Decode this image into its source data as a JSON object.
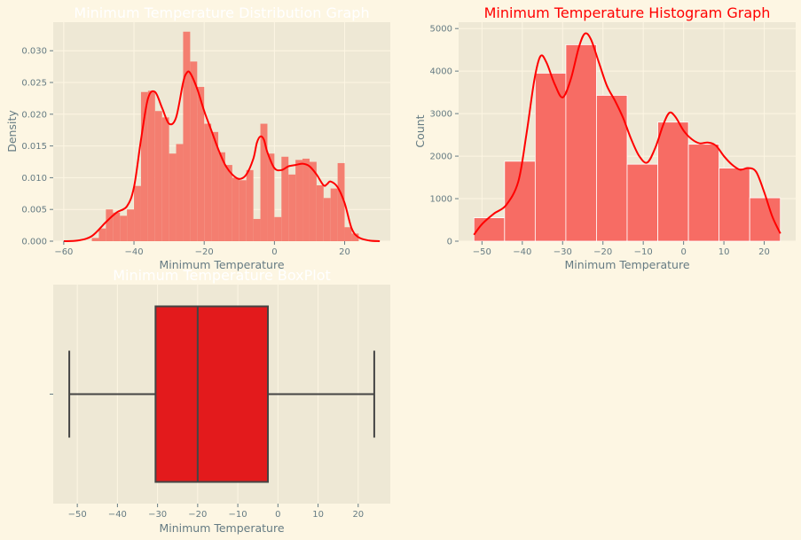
{
  "chart_data": [
    {
      "type": "bar",
      "subtype": "density-histogram-with-kde",
      "title": "Minimum Temperature Distribution Graph",
      "title_color": "#ffffff",
      "xlabel": "Minimum Temperature",
      "ylabel": "Density",
      "xlim": [
        -63,
        33
      ],
      "ylim": [
        0,
        0.0345
      ],
      "xticks": [
        -60,
        -40,
        -20,
        0,
        20
      ],
      "yticks": [
        0.0,
        0.005,
        0.01,
        0.015,
        0.02,
        0.025,
        0.03
      ],
      "ytick_labels": [
        "0.000",
        "0.005",
        "0.010",
        "0.015",
        "0.020",
        "0.025",
        "0.030"
      ],
      "grid": true,
      "bar_color": "#f47e70",
      "line_color": "#ff0000",
      "bin_edges": [
        -52,
        -50,
        -48,
        -46,
        -44,
        -42,
        -40,
        -38,
        -36,
        -34,
        -32,
        -30,
        -28,
        -26,
        -24,
        -22,
        -20,
        -18,
        -16,
        -14,
        -12,
        -10,
        -8,
        -6,
        -4,
        -2,
        0,
        2,
        4,
        6,
        8,
        10,
        12,
        14,
        16,
        18,
        20,
        22,
        24
      ],
      "values": [
        0.0005,
        0.002,
        0.005,
        0.0045,
        0.004,
        0.005,
        0.0087,
        0.0235,
        0.0237,
        0.0205,
        0.0195,
        0.0138,
        0.0153,
        0.033,
        0.0283,
        0.0243,
        0.0185,
        0.0172,
        0.014,
        0.012,
        0.01,
        0.0096,
        0.0112,
        0.0035,
        0.0185,
        0.0138,
        0.0038,
        0.0133,
        0.0105,
        0.0128,
        0.013,
        0.0125,
        0.0088,
        0.0068,
        0.0083,
        0.0123,
        0.0022,
        0.0012
      ],
      "kde": {
        "x": [
          -60,
          -56,
          -52,
          -48,
          -45,
          -42,
          -40,
          -38,
          -36,
          -34,
          -32,
          -30,
          -28,
          -26,
          -25,
          -24,
          -22,
          -20,
          -18,
          -16,
          -14,
          -12,
          -10,
          -8,
          -6,
          -5,
          -4,
          -3,
          -2,
          0,
          2,
          4,
          6,
          8,
          10,
          12,
          14,
          15,
          16,
          18,
          20,
          22,
          24,
          27,
          30
        ],
        "y": [
          0.0,
          0.0001,
          0.0008,
          0.003,
          0.0045,
          0.0055,
          0.0085,
          0.016,
          0.0225,
          0.0235,
          0.021,
          0.0185,
          0.0195,
          0.025,
          0.0265,
          0.0265,
          0.024,
          0.0205,
          0.0175,
          0.0145,
          0.012,
          0.0105,
          0.0098,
          0.0105,
          0.013,
          0.0155,
          0.0165,
          0.016,
          0.014,
          0.0115,
          0.0112,
          0.0118,
          0.012,
          0.0122,
          0.0118,
          0.0105,
          0.0088,
          0.009,
          0.0094,
          0.0085,
          0.006,
          0.002,
          0.0006,
          0.0001,
          0.0
        ]
      }
    },
    {
      "type": "bar",
      "subtype": "count-histogram-with-kde",
      "title": "Minimum Temperature Histogram Graph",
      "title_color": "#ff0000",
      "xlabel": "Minimum Temperature",
      "ylabel": "Count",
      "xlim": [
        -55.8,
        27.8
      ],
      "ylim": [
        0,
        5150
      ],
      "xticks": [
        -50,
        -40,
        -30,
        -20,
        -10,
        0,
        10,
        20
      ],
      "yticks": [
        0,
        1000,
        2000,
        3000,
        4000,
        5000
      ],
      "ytick_labels": [
        "0",
        "1000",
        "2000",
        "3000",
        "4000",
        "5000"
      ],
      "grid": true,
      "bar_color": "#f76c64",
      "line_color": "#ff0000",
      "bin_edges": [
        -52,
        -44.4,
        -36.8,
        -29.2,
        -21.6,
        -14,
        -6.4,
        1.2,
        8.8,
        16.4,
        24
      ],
      "values": [
        550,
        1880,
        3950,
        4620,
        3430,
        1810,
        2800,
        2280,
        1720,
        1020
      ],
      "kde": {
        "x": [
          -52,
          -50,
          -47,
          -44,
          -41,
          -39,
          -37,
          -35.5,
          -34,
          -32,
          -30,
          -28,
          -26,
          -24.5,
          -23,
          -21,
          -19,
          -17,
          -15,
          -13,
          -11,
          -9,
          -7,
          -5,
          -3.5,
          -2,
          0,
          2,
          4,
          6,
          8,
          10,
          12,
          14,
          16,
          18,
          20,
          22,
          24
        ],
        "y": [
          150,
          400,
          650,
          850,
          1400,
          2500,
          3800,
          4350,
          4200,
          3700,
          3380,
          3800,
          4550,
          4880,
          4750,
          4200,
          3650,
          3300,
          2900,
          2400,
          2000,
          1850,
          2200,
          2750,
          3020,
          2920,
          2600,
          2400,
          2300,
          2320,
          2250,
          2000,
          1800,
          1680,
          1720,
          1630,
          1150,
          580,
          180
        ]
      }
    },
    {
      "type": "boxplot",
      "title": "Minimum Temperature BoxPlot",
      "title_color": "#ffffff",
      "xlabel": "Minimum Temperature",
      "ylabel": "",
      "xlim": [
        -56,
        28
      ],
      "xticks": [
        -50,
        -40,
        -30,
        -20,
        -10,
        0,
        10,
        20
      ],
      "grid": true,
      "box_color": "#e31a1c",
      "edge_color": "#444444",
      "whisker_low": -52,
      "q1": -30.5,
      "median": -20,
      "q3": -2.5,
      "whisker_high": 24
    }
  ]
}
